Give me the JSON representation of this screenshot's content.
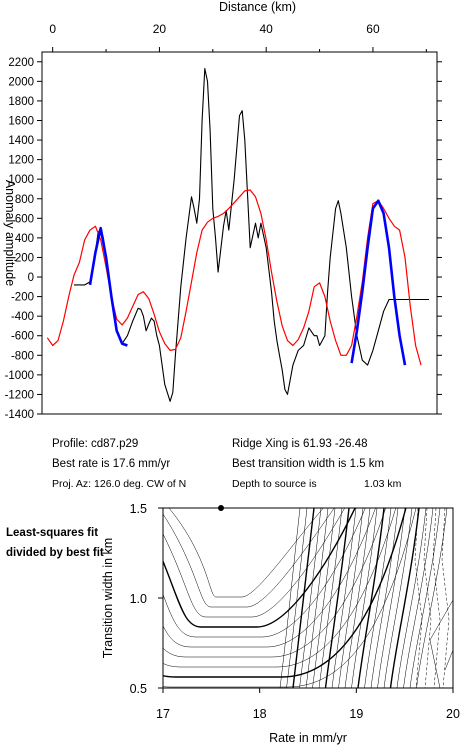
{
  "info": {
    "profile": "Profile: cd87.p29",
    "rate": "Best rate is 17.6 mm/yr",
    "proj": "Proj. Az: 126.0 deg. CW of N",
    "ridge": "Ridge Xing is 61.93 -26.48",
    "transition": "Best transition width is 1.5 km",
    "depth": "Depth to source is",
    "depth_value": "1.03 km"
  },
  "side_note": "Least-squares fit divided by best fit",
  "chart_data": [
    {
      "type": "line",
      "xlabel": "Distance (km)",
      "ylabel": "Anomaly amplitude",
      "xlim": [
        -2,
        72
      ],
      "ylim": [
        -1400,
        2300
      ],
      "xticks": [
        0,
        20,
        40,
        60
      ],
      "yticks": [
        -1400,
        -1200,
        -1000,
        -800,
        -600,
        -400,
        -200,
        0,
        200,
        400,
        600,
        800,
        1000,
        1200,
        1400,
        1600,
        1800,
        2000,
        2200
      ],
      "series": [
        {
          "color": "#000000",
          "x": [
            4,
            5,
            6,
            7,
            8,
            8.5,
            9,
            9.5,
            10,
            11,
            12,
            13,
            14,
            15,
            16,
            16.5,
            17,
            17.5,
            18,
            18.5,
            19,
            19.5,
            20,
            20.5,
            21,
            22,
            22.5,
            23,
            24,
            25,
            26,
            26.5,
            27,
            27.5,
            28,
            28.5,
            29,
            29.5,
            30,
            30.5,
            31,
            32,
            32.5,
            33,
            34,
            35,
            35.5,
            36,
            37,
            38,
            38.5,
            39,
            40,
            41,
            41.5,
            42,
            42.5,
            43,
            43.5,
            44,
            45,
            46,
            47,
            48,
            49,
            49.5,
            50,
            51,
            51.5,
            52,
            53,
            53.5,
            54,
            55,
            56,
            57,
            58,
            59,
            60,
            61,
            62,
            63,
            64,
            65,
            66,
            67,
            68,
            69,
            70,
            70.5
          ],
          "y": [
            -80,
            -80,
            -80,
            -50,
            250,
            450,
            500,
            400,
            200,
            -200,
            -550,
            -680,
            -600,
            -450,
            -320,
            -330,
            -400,
            -550,
            -480,
            -420,
            -450,
            -600,
            -700,
            -900,
            -1100,
            -1270,
            -1180,
            -800,
            -100,
            400,
            820,
            700,
            550,
            800,
            1600,
            2130,
            2000,
            1500,
            700,
            400,
            50,
            520,
            680,
            480,
            1000,
            1650,
            1700,
            1400,
            300,
            550,
            400,
            550,
            300,
            -150,
            -450,
            -650,
            -800,
            -950,
            -1150,
            -1200,
            -900,
            -750,
            -700,
            -520,
            -600,
            -600,
            -700,
            -600,
            -150,
            200,
            700,
            780,
            650,
            300,
            -200,
            -600,
            -850,
            -900,
            -750,
            -550,
            -350,
            -230,
            -230,
            -230,
            -230,
            -230,
            -230,
            -230,
            -230,
            -230
          ],
          "x_plot_order_note": ""
        },
        {
          "color": "#ff0000",
          "x": [
            -1,
            0,
            1,
            2,
            3,
            4,
            5,
            6,
            7,
            8,
            9,
            10,
            11,
            12,
            13,
            14,
            15,
            16,
            17,
            18,
            19,
            20,
            21,
            22,
            23,
            24,
            25,
            26,
            27,
            28,
            29,
            30,
            31,
            32,
            33,
            34,
            35,
            36,
            37,
            38,
            39,
            40,
            41,
            42,
            43,
            44,
            45,
            46,
            47,
            48,
            49,
            50,
            51,
            52,
            53,
            54,
            55,
            56,
            57,
            58,
            59,
            60,
            61,
            62,
            63,
            64,
            65,
            66,
            67,
            68,
            69
          ],
          "y": [
            -620,
            -700,
            -650,
            -450,
            -200,
            20,
            150,
            380,
            480,
            520,
            380,
            100,
            -200,
            -430,
            -490,
            -420,
            -300,
            -180,
            -150,
            -220,
            -380,
            -560,
            -680,
            -750,
            -740,
            -620,
            -350,
            -50,
            250,
            480,
            560,
            600,
            620,
            650,
            700,
            760,
            820,
            880,
            890,
            820,
            650,
            380,
            50,
            -250,
            -500,
            -650,
            -700,
            -640,
            -520,
            -350,
            -100,
            -60,
            -200,
            -450,
            -650,
            -800,
            -800,
            -700,
            -400,
            -50,
            400,
            750,
            780,
            700,
            600,
            520,
            480,
            200,
            -300,
            -700,
            -900
          ]
        },
        {
          "color": "#0000ff",
          "x": [
            7,
            8,
            9,
            10,
            11,
            12,
            13,
            14
          ],
          "y": [
            -80,
            250,
            500,
            200,
            -200,
            -550,
            -680,
            -700
          ]
        },
        {
          "color": "#0000ff",
          "x": [
            56,
            57,
            58,
            59,
            60,
            61,
            62,
            63,
            64,
            65,
            66
          ],
          "y": [
            -880,
            -550,
            -150,
            300,
            700,
            780,
            650,
            300,
            -200,
            -600,
            -900
          ]
        }
      ]
    },
    {
      "type": "contour",
      "xlabel": "Rate in mm/yr",
      "ylabel": "Transition width in km",
      "xlim": [
        17,
        20
      ],
      "ylim": [
        0.5,
        1.5
      ],
      "xticks": [
        17,
        18,
        19,
        20
      ],
      "yticks": [
        0.5,
        1.0,
        1.5
      ],
      "best_fit_marker": {
        "x": 17.6,
        "y": 1.5
      }
    }
  ]
}
